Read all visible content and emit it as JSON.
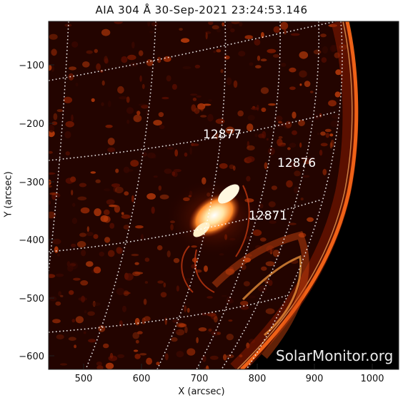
{
  "title": "AIA 304 Å 30-Sep-2021 23:24:53.146",
  "watermark": "SolarMonitor.org",
  "axes": {
    "xlabel": "X (arcsec)",
    "ylabel": "Y (arcsec)",
    "x_ticks": [
      "500",
      "600",
      "700",
      "800",
      "900",
      "1000"
    ],
    "y_ticks": [
      "−100",
      "−200",
      "−300",
      "−400",
      "−500",
      "−600"
    ]
  },
  "active_regions": [
    {
      "label": "12877"
    },
    {
      "label": "12876"
    },
    {
      "label": "12871"
    }
  ],
  "colors": {
    "background": "#000000",
    "limb": "#ff6a1a",
    "flare": "#fff4d0",
    "text": "#ffffff"
  }
}
